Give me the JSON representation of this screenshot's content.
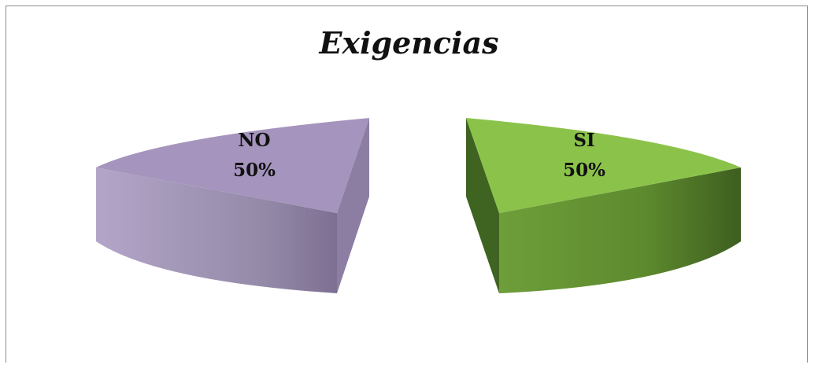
{
  "chart_data": {
    "type": "pie",
    "title": "Exigencias",
    "exploded": true,
    "style": "3d",
    "slices": [
      {
        "name": "NO",
        "value": 50,
        "pct_label": "50%",
        "color_top": "#a594bd",
        "color_side": "#8a7a9e"
      },
      {
        "name": "SI",
        "value": 50,
        "pct_label": "50%",
        "color_top": "#8bc34a",
        "color_side": "#4e7a25"
      }
    ]
  }
}
